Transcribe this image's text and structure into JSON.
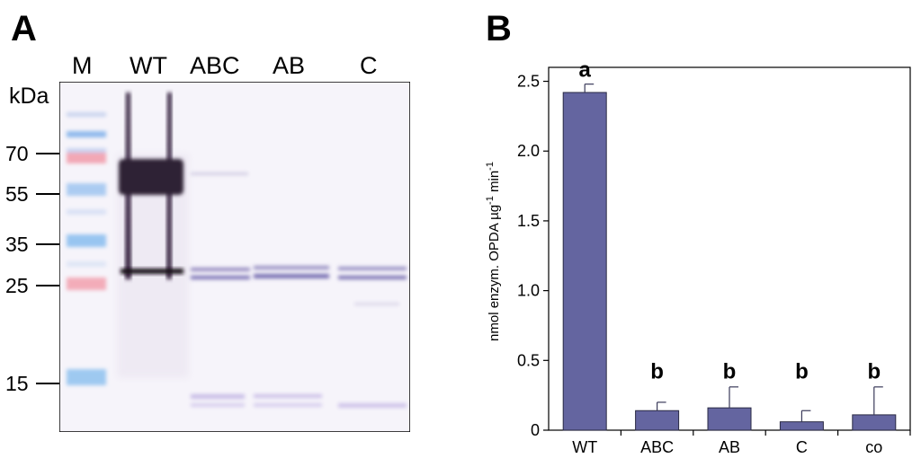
{
  "panel_a": {
    "letter": "A",
    "lanes": [
      "M",
      "WT",
      "ABC",
      "AB",
      "C"
    ],
    "unit": "kDa",
    "markers": [
      "70",
      "55",
      "35",
      "25",
      "15"
    ]
  },
  "panel_b": {
    "letter": "B"
  },
  "chart_data": {
    "type": "bar",
    "categories": [
      "WT",
      "ABC",
      "AB",
      "C",
      "co"
    ],
    "values": [
      2.42,
      0.14,
      0.16,
      0.06,
      0.11
    ],
    "errors": [
      0.06,
      0.06,
      0.15,
      0.08,
      0.2
    ],
    "significance": [
      "a",
      "b",
      "b",
      "b",
      "b"
    ],
    "ylabel": "nmol enzym. OPDA µg",
    "ylabel_sup1": "-1",
    "ylabel_mid": " min",
    "ylabel_sup2": "-1",
    "yticks": [
      "0",
      "0.5",
      "1.0",
      "1.5",
      "2.0",
      "2.5"
    ],
    "ylim": [
      0,
      2.6
    ],
    "bar_color": "#6465a0",
    "grid": false
  }
}
